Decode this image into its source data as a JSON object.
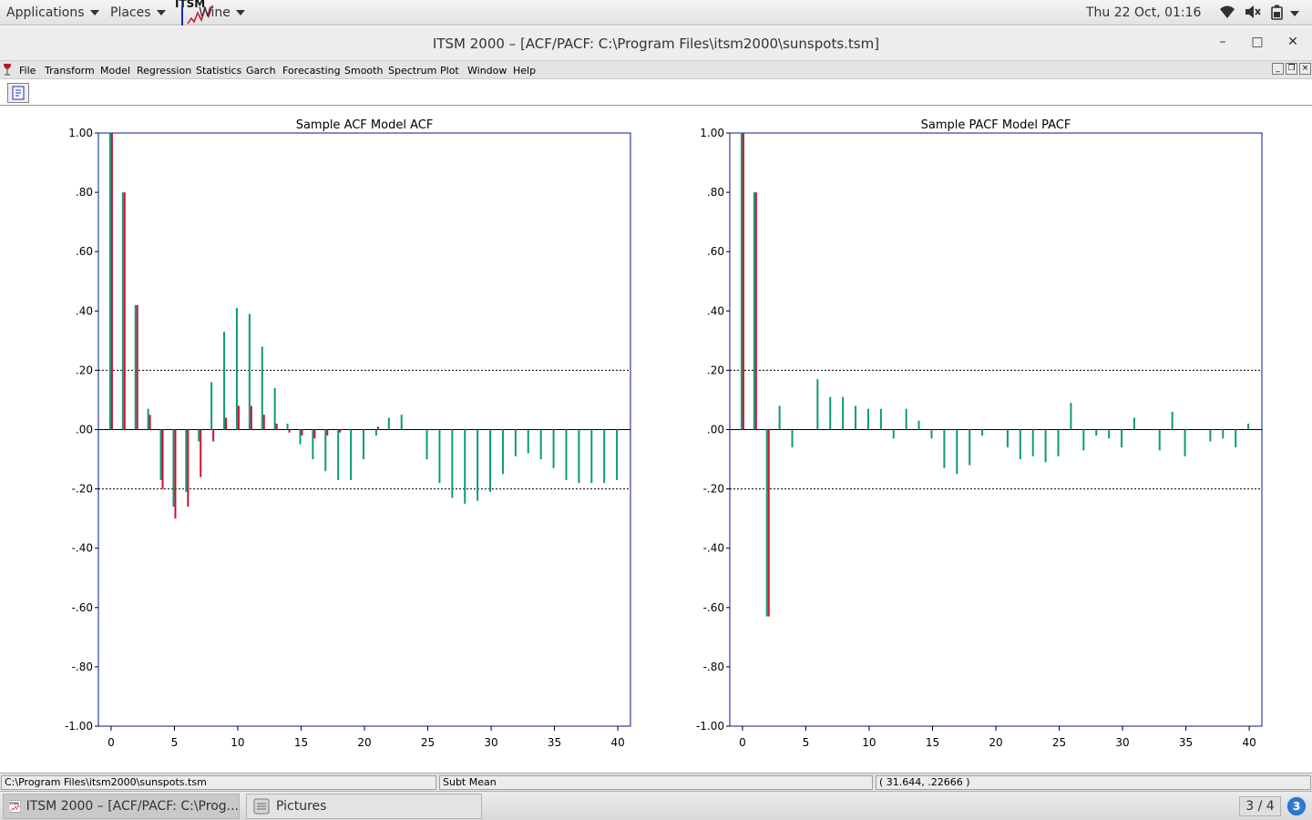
{
  "topbar": {
    "applications_label": "Applications",
    "places_label": "Places",
    "wine_label": "Wine",
    "clock": "Thu 22 Oct, 01:16"
  },
  "window": {
    "title": "ITSM 2000 – [ACF/PACF: C:\\Program Files\\itsm2000\\sunspots.tsm]"
  },
  "menu": [
    "File",
    "Transform",
    "Model",
    "Regression",
    "Statistics",
    "Garch",
    "Forecasting",
    "Smooth",
    "Spectrum",
    "Plot",
    "Window",
    "Help"
  ],
  "status": {
    "file_path": "C:\\Program Files\\itsm2000\\sunspots.tsm",
    "mode": "Subt Mean",
    "coords": "( 31.644, .22666 )"
  },
  "taskbar": {
    "task1_label": "ITSM 2000 – [ACF/PACF: C:\\Prog...",
    "task2_label": "Pictures",
    "pager": "3 / 4",
    "notification_count": "3"
  },
  "colors": {
    "sample": "#0c9a78",
    "model": "#d0102c",
    "axis_frame": "#0a1a8c"
  },
  "chart_data": [
    {
      "type": "bar",
      "title": "Sample ACF  Model ACF",
      "series": [
        {
          "name": "Sample ACF",
          "color": "#0c9a78",
          "x": [
            0,
            1,
            2,
            3,
            4,
            5,
            6,
            7,
            8,
            9,
            10,
            11,
            12,
            13,
            14,
            15,
            16,
            17,
            18,
            19,
            20,
            21,
            22,
            23,
            24,
            25,
            26,
            27,
            28,
            29,
            30,
            31,
            32,
            33,
            34,
            35,
            36,
            37,
            38,
            39,
            40
          ],
          "values": [
            1.0,
            0.8,
            0.42,
            0.07,
            -0.17,
            -0.26,
            -0.21,
            -0.04,
            0.16,
            0.33,
            0.41,
            0.39,
            0.28,
            0.14,
            0.02,
            -0.05,
            -0.1,
            -0.14,
            -0.17,
            -0.17,
            -0.1,
            -0.02,
            0.04,
            0.05,
            0.0,
            -0.1,
            -0.18,
            -0.23,
            -0.25,
            -0.24,
            -0.21,
            -0.15,
            -0.09,
            -0.08,
            -0.1,
            -0.13,
            -0.17,
            -0.18,
            -0.18,
            -0.18,
            -0.17
          ]
        },
        {
          "name": "Model ACF",
          "color": "#d0102c",
          "x": [
            0,
            1,
            2,
            3,
            4,
            5,
            6,
            7,
            8,
            9,
            10,
            11,
            12,
            13,
            14,
            15,
            16,
            17,
            18,
            19,
            20,
            21
          ],
          "values": [
            1.0,
            0.8,
            0.42,
            0.05,
            -0.2,
            -0.3,
            -0.26,
            -0.16,
            -0.04,
            0.04,
            0.08,
            0.08,
            0.05,
            0.02,
            -0.01,
            -0.02,
            -0.03,
            -0.02,
            -0.01,
            0.0,
            0.0,
            0.01
          ]
        }
      ],
      "xlim": [
        -1,
        41
      ],
      "ylim": [
        -1.0,
        1.0
      ],
      "xticks": [
        0,
        5,
        10,
        15,
        20,
        25,
        30,
        35,
        40
      ],
      "yticks": [
        1.0,
        0.8,
        0.6,
        0.4,
        0.2,
        0.0,
        -0.2,
        -0.4,
        -0.6,
        -0.8,
        -1.0
      ],
      "ytick_labels": [
        "1.00",
        ".80",
        ".60",
        ".40",
        ".20",
        ".00",
        "-.20",
        "-.40",
        "-.60",
        "-.80",
        "-1.00"
      ],
      "bounds": [
        0.2,
        -0.2
      ]
    },
    {
      "type": "bar",
      "title": "Sample PACF  Model PACF",
      "series": [
        {
          "name": "Sample PACF",
          "color": "#0c9a78",
          "x": [
            0,
            1,
            2,
            3,
            4,
            5,
            6,
            7,
            8,
            9,
            10,
            11,
            12,
            13,
            14,
            15,
            16,
            17,
            18,
            19,
            20,
            21,
            22,
            23,
            24,
            25,
            26,
            27,
            28,
            29,
            30,
            31,
            32,
            33,
            34,
            35,
            36,
            37,
            38,
            39,
            40
          ],
          "values": [
            1.0,
            0.8,
            -0.63,
            0.08,
            -0.06,
            0.0,
            0.17,
            0.11,
            0.11,
            0.08,
            0.07,
            0.07,
            -0.03,
            0.07,
            0.03,
            -0.03,
            -0.13,
            -0.15,
            -0.12,
            -0.02,
            0.0,
            -0.06,
            -0.1,
            -0.09,
            -0.11,
            -0.09,
            0.09,
            -0.07,
            -0.02,
            -0.03,
            -0.06,
            0.04,
            0.0,
            -0.07,
            0.06,
            -0.09,
            0.0,
            -0.04,
            -0.03,
            -0.06,
            0.02
          ]
        },
        {
          "name": "Model PACF",
          "color": "#d0102c",
          "x": [
            0,
            1,
            2
          ],
          "values": [
            1.0,
            0.8,
            -0.63
          ]
        }
      ],
      "xlim": [
        -1,
        41
      ],
      "ylim": [
        -1.0,
        1.0
      ],
      "xticks": [
        0,
        5,
        10,
        15,
        20,
        25,
        30,
        35,
        40
      ],
      "yticks": [
        1.0,
        0.8,
        0.6,
        0.4,
        0.2,
        0.0,
        -0.2,
        -0.4,
        -0.6,
        -0.8,
        -1.0
      ],
      "ytick_labels": [
        "1.00",
        ".80",
        ".60",
        ".40",
        ".20",
        ".00",
        "-.20",
        "-.40",
        "-.60",
        "-.80",
        "-1.00"
      ],
      "bounds": [
        0.2,
        -0.2
      ]
    }
  ]
}
